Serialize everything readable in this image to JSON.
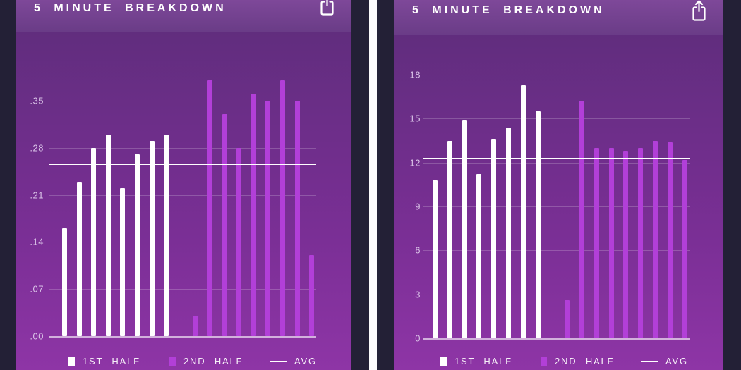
{
  "colors": {
    "frame_dark": "#232036",
    "divider_white": "#fbfafc",
    "header_purple": "#74408f",
    "chart_bg_top": "#612d7e",
    "chart_bg_bottom": "#8e35a6",
    "bar_first_half": "#ffffff",
    "bar_second_half": "#b23fd8",
    "avg_line": "#ffffff",
    "tick_label": "#d9c2e7"
  },
  "panels": [
    {
      "title": "5 MINUTE BREAKDOWN",
      "icon": "share-export-icon",
      "legend": [
        {
          "label": "1ST HALF",
          "swatch": "#ffffff"
        },
        {
          "label": "2ND HALF",
          "swatch": "#b23fd8"
        },
        {
          "label": "AVG",
          "swatch": "line"
        }
      ]
    },
    {
      "title": "5 MINUTE BREAKDOWN",
      "icon": "share-export-icon",
      "legend": [
        {
          "label": "1ST HALF",
          "swatch": "#ffffff"
        },
        {
          "label": "2ND HALF",
          "swatch": "#b23fd8"
        },
        {
          "label": "AVG",
          "swatch": "line"
        }
      ]
    }
  ],
  "chart_data": [
    {
      "type": "bar",
      "title": "5 MINUTE BREAKDOWN",
      "xlabel": "",
      "ylabel": "",
      "ylim": [
        0,
        0.35
      ],
      "yticks": [
        0.35,
        0.28,
        0.21,
        0.14,
        0.07,
        0
      ],
      "ytick_labels": [
        ".35",
        ".28",
        ".21",
        ".14",
        ".07",
        ".00"
      ],
      "grid": true,
      "legend_position": "bottom",
      "gap_slot_between_halves": true,
      "avg": 0.257,
      "series": [
        {
          "name": "1ST HALF",
          "color": "#ffffff",
          "values": [
            0.16,
            0.23,
            0.28,
            0.3,
            0.22,
            0.27,
            0.29,
            0.3
          ]
        },
        {
          "name": "2ND HALF",
          "color": "#b23fd8",
          "values": [
            0.03,
            0.38,
            0.33,
            0.28,
            0.36,
            0.35,
            0.38,
            0.35,
            0.12
          ]
        }
      ]
    },
    {
      "type": "bar",
      "title": "5 MINUTE BREAKDOWN",
      "xlabel": "",
      "ylabel": "",
      "ylim": [
        0,
        18
      ],
      "yticks": [
        18,
        15,
        12,
        9,
        6,
        3,
        0
      ],
      "ytick_labels": [
        "18",
        "15",
        "12",
        "9",
        "6",
        "3",
        "0"
      ],
      "grid": true,
      "legend_position": "bottom",
      "gap_slot_between_halves": true,
      "avg": 12.3,
      "series": [
        {
          "name": "1ST HALF",
          "color": "#ffffff",
          "values": [
            10.8,
            13.5,
            14.9,
            11.2,
            13.6,
            14.4,
            17.3,
            15.5
          ]
        },
        {
          "name": "2ND HALF",
          "color": "#b23fd8",
          "values": [
            2.6,
            16.2,
            13.0,
            13.0,
            12.8,
            13.0,
            13.5,
            13.4,
            12.2
          ]
        }
      ]
    }
  ]
}
